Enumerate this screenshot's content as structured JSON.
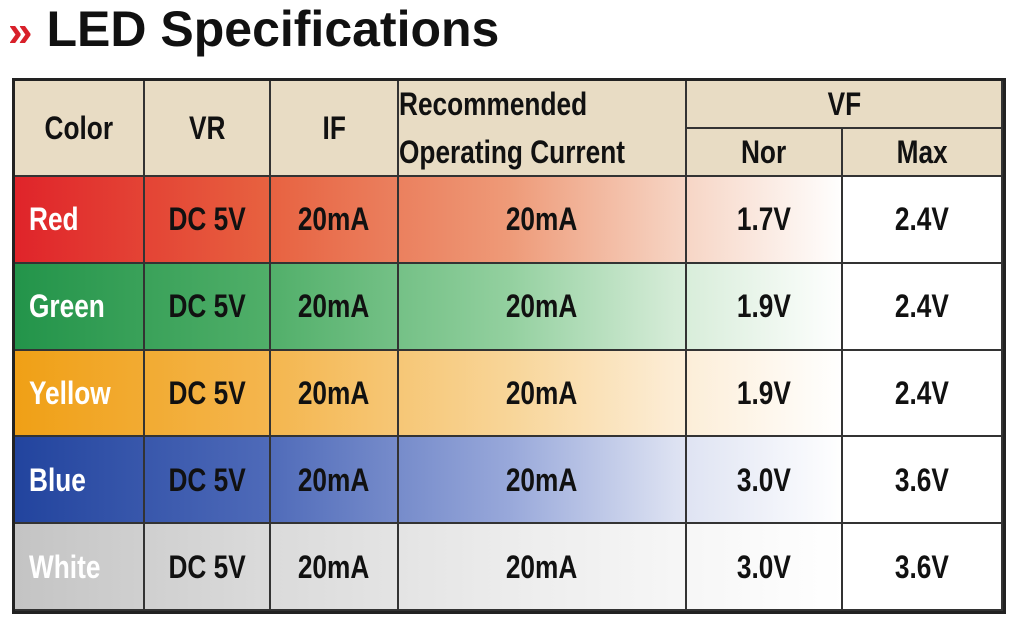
{
  "header": {
    "marker": "»",
    "title": "LED Specifications"
  },
  "table": {
    "headers": {
      "color": "Color",
      "vr": "VR",
      "if": "IF",
      "rec": [
        "Recommended",
        "Operating Current"
      ],
      "vf": "VF",
      "nor": "Nor",
      "max": "Max"
    },
    "rows": [
      [
        "Red",
        "DC 5V",
        "20mA",
        "20mA",
        "1.7V",
        "2.4V"
      ],
      [
        "Green",
        "DC 5V",
        "20mA",
        "20mA",
        "1.9V",
        "2.4V"
      ],
      [
        "Yellow",
        "DC 5V",
        "20mA",
        "20mA",
        "1.9V",
        "2.4V"
      ],
      [
        "Blue",
        "DC 5V",
        "20mA",
        "20mA",
        "3.0V",
        "3.6V"
      ],
      [
        "White",
        "DC 5V",
        "20mA",
        "20mA",
        "3.0V",
        "3.6V"
      ]
    ]
  }
}
